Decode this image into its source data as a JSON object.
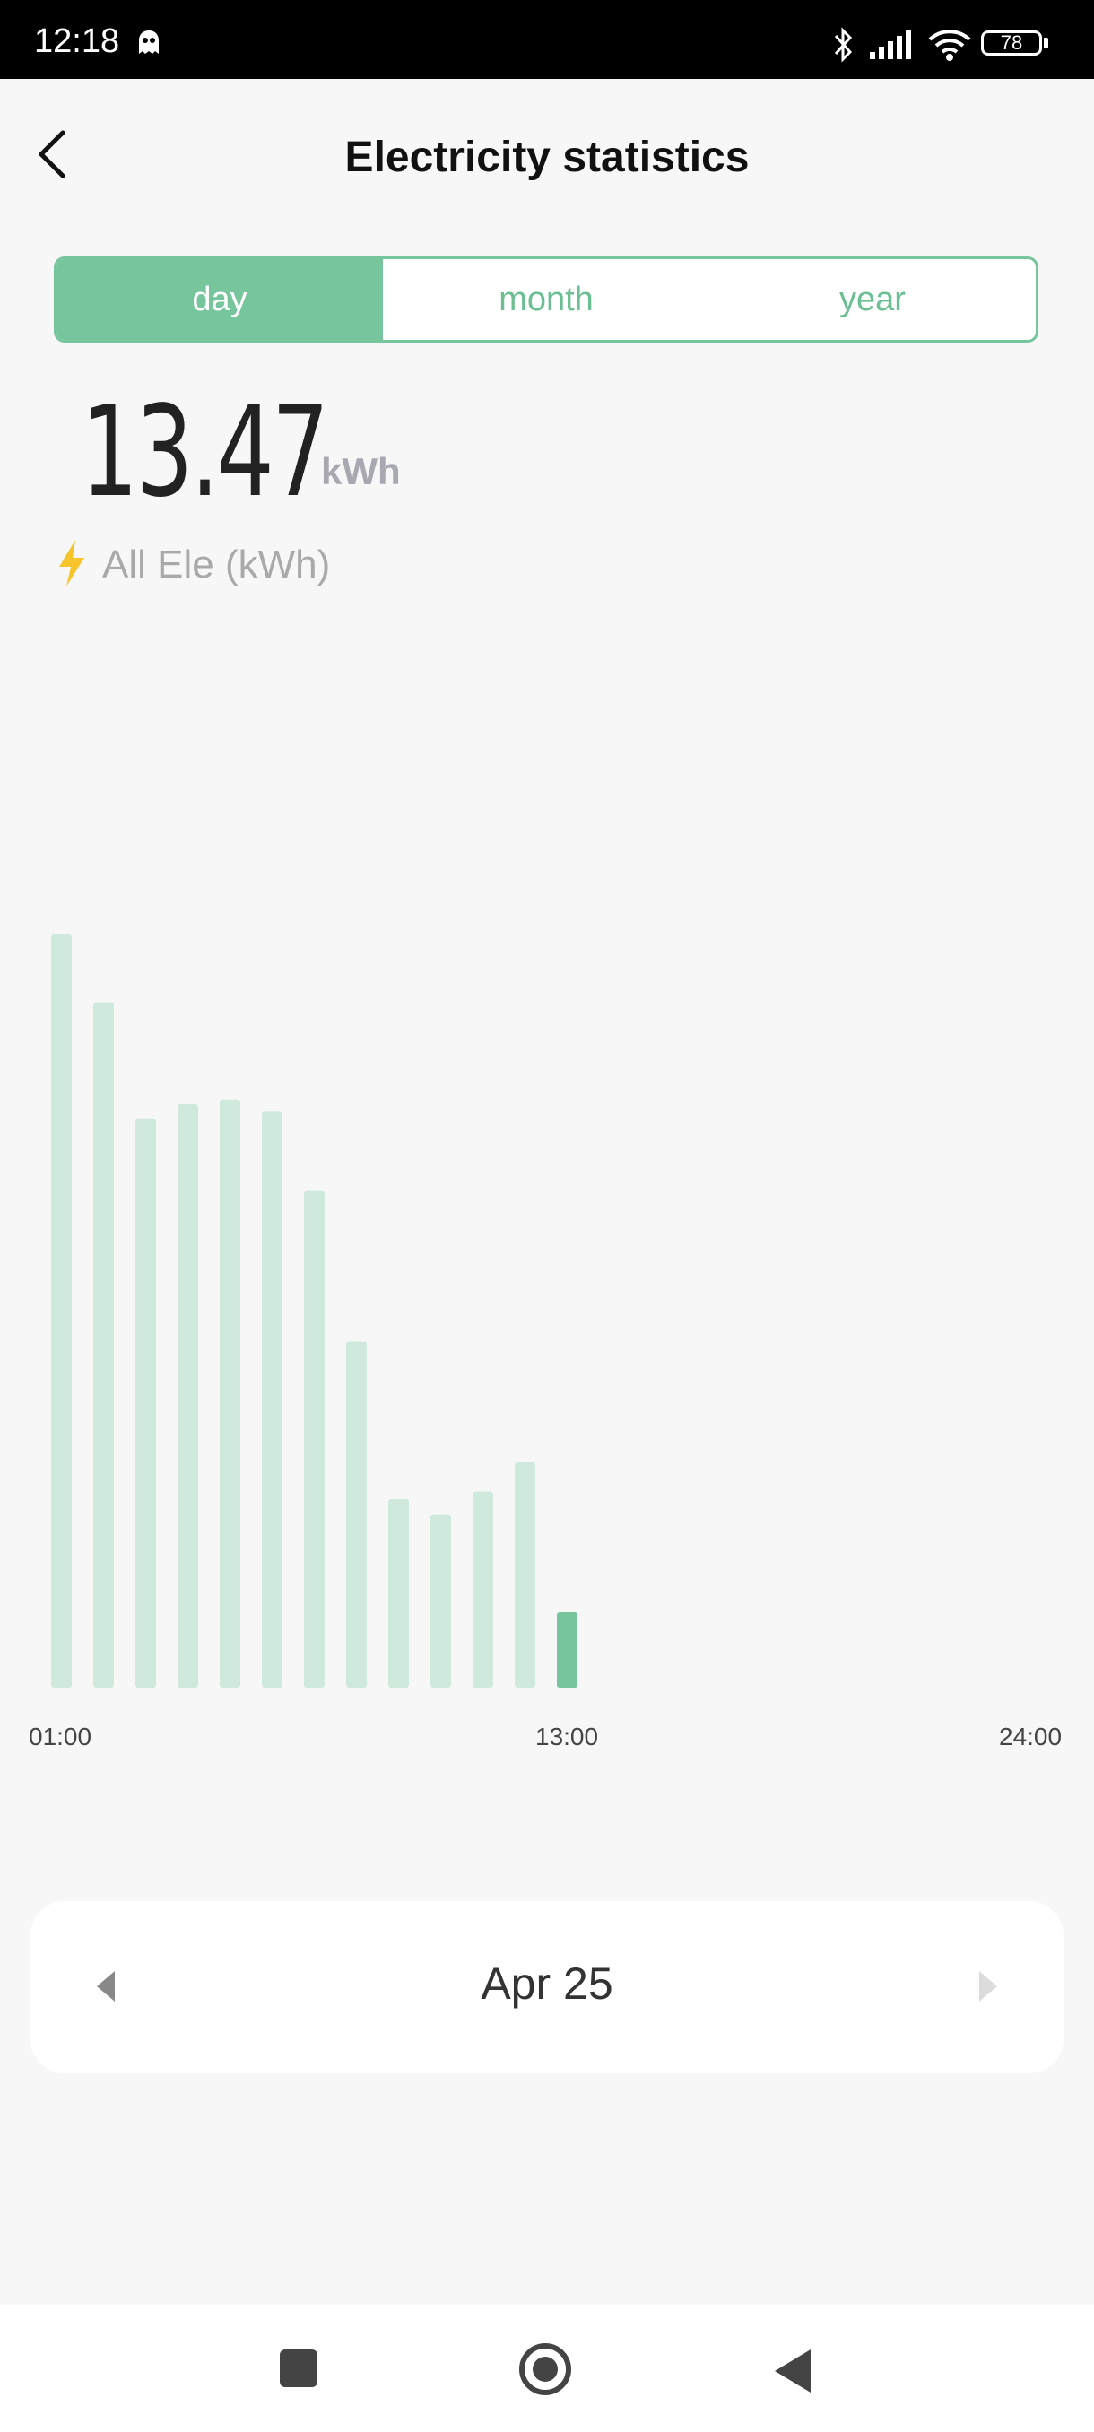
{
  "status_bar": {
    "time": "12:18",
    "battery": "78"
  },
  "header": {
    "title": "Electricity statistics",
    "back_icon": "chevron-left-icon"
  },
  "period_tabs": [
    {
      "label": "day",
      "active": true
    },
    {
      "label": "month",
      "active": false
    },
    {
      "label": "year",
      "active": false
    }
  ],
  "total": {
    "value": "13.47",
    "unit": "kWh"
  },
  "legend": {
    "label": "All Ele (kWh)",
    "icon": "lightning-icon",
    "color": "#f7c52b"
  },
  "colors": {
    "accent": "#76c59d",
    "bar_light": "#cfe9dc",
    "bar_active": "#76c59d"
  },
  "chart_data": {
    "type": "bar",
    "x_tick_labels": [
      "01:00",
      "13:00",
      "24:00"
    ],
    "categories": [
      "01:00",
      "02:00",
      "03:00",
      "04:00",
      "05:00",
      "06:00",
      "07:00",
      "08:00",
      "09:00",
      "10:00",
      "11:00",
      "12:00",
      "13:00"
    ],
    "values": [
      1.0,
      0.91,
      0.755,
      0.775,
      0.78,
      0.765,
      0.66,
      0.46,
      0.25,
      0.23,
      0.26,
      0.3,
      0.1
    ],
    "highlighted_index": 12,
    "grid": false,
    "legend": "none"
  },
  "date_nav": {
    "label": "Apr 25",
    "prev_icon": "caret-left-icon",
    "next_icon": "caret-right-icon"
  },
  "nav_bar": {
    "items": [
      "square-icon",
      "home-circle-icon",
      "back-triangle-icon"
    ]
  }
}
